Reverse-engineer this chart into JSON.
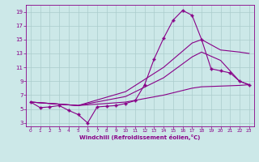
{
  "xlabel": "Windchill (Refroidissement éolien,°C)",
  "xlim": [
    -0.5,
    23.5
  ],
  "ylim": [
    2.5,
    20
  ],
  "xticks": [
    0,
    1,
    2,
    3,
    4,
    5,
    6,
    7,
    8,
    9,
    10,
    11,
    12,
    13,
    14,
    15,
    16,
    17,
    18,
    19,
    20,
    21,
    22,
    23
  ],
  "yticks": [
    3,
    5,
    7,
    9,
    11,
    13,
    15,
    17,
    19
  ],
  "bg_color": "#cce8e8",
  "line_color": "#880088",
  "grid_color": "#aacccc",
  "lines": [
    {
      "x": [
        0,
        1,
        2,
        3,
        4,
        5,
        6,
        7,
        8,
        9,
        10,
        11,
        12,
        13,
        14,
        15,
        16,
        17,
        18,
        19,
        20,
        21,
        22,
        23
      ],
      "y": [
        6.0,
        5.2,
        5.3,
        5.5,
        4.8,
        4.2,
        3.0,
        5.3,
        5.4,
        5.5,
        5.8,
        6.2,
        8.5,
        12.2,
        15.2,
        17.8,
        19.2,
        18.5,
        15.0,
        10.8,
        10.5,
        10.2,
        9.0,
        8.5
      ],
      "marker": "P",
      "markersize": 2.5,
      "lw": 0.8
    },
    {
      "x": [
        0,
        5,
        10,
        14,
        17,
        18,
        20,
        22,
        23
      ],
      "y": [
        6.0,
        5.5,
        7.5,
        11.0,
        14.5,
        15.0,
        13.5,
        13.2,
        13.0
      ],
      "marker": null,
      "lw": 0.8
    },
    {
      "x": [
        0,
        5,
        10,
        14,
        17,
        18,
        20,
        22,
        23
      ],
      "y": [
        6.0,
        5.5,
        6.8,
        9.5,
        12.5,
        13.2,
        12.0,
        9.0,
        8.5
      ],
      "marker": null,
      "lw": 0.8
    },
    {
      "x": [
        0,
        5,
        10,
        14,
        17,
        18,
        20,
        22,
        23
      ],
      "y": [
        6.0,
        5.5,
        6.0,
        7.0,
        8.0,
        8.2,
        8.3,
        8.4,
        8.5
      ],
      "marker": null,
      "lw": 0.8
    }
  ]
}
